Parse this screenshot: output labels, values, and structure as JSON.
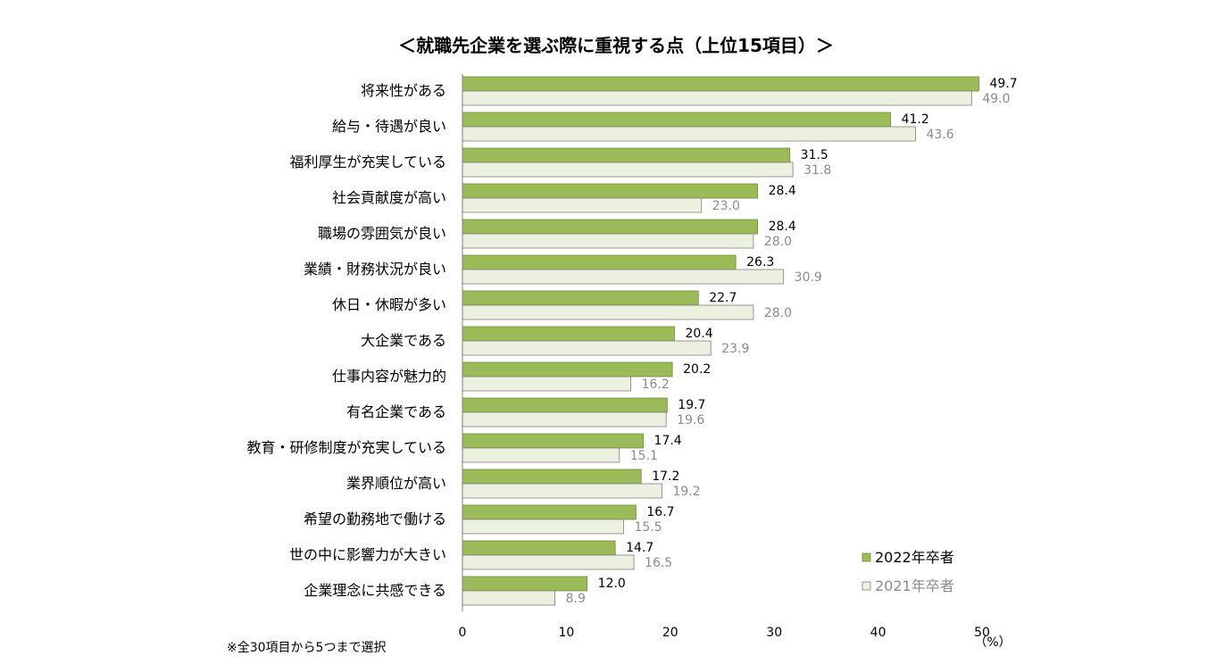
{
  "chart_data": {
    "type": "bar",
    "orientation": "horizontal",
    "title": "＜就職先企業を選ぶ際に重視する点（上位15項目）＞",
    "categories": [
      "将来性がある",
      "給与・待遇が良い",
      "福利厚生が充実している",
      "社会貢献度が高い",
      "職場の雰囲気が良い",
      "業績・財務状況が良い",
      "休日・休暇が多い",
      "大企業である",
      "仕事内容が魅力的",
      "有名企業である",
      "教育・研修制度が充実している",
      "業界順位が高い",
      "希望の勤務地で働ける",
      "世の中に影響力が大きい",
      "企業理念に共感できる"
    ],
    "series": [
      {
        "name": "2022年卒者",
        "color": "#9bbb59",
        "labels": [
          "49.7",
          "41.2",
          "31.5",
          "28.4",
          "28.4",
          "26.3",
          "22.7",
          "20.4",
          "20.2",
          "19.7",
          "17.4",
          "17.2",
          "16.7",
          "14.7",
          "12.0"
        ],
        "values": [
          49.7,
          41.2,
          31.5,
          28.4,
          28.4,
          26.3,
          22.7,
          20.4,
          20.2,
          19.7,
          17.4,
          17.2,
          16.7,
          14.7,
          12.0
        ]
      },
      {
        "name": "2021年卒者",
        "color": "#ebf1de",
        "labels": [
          "49.0",
          "43.6",
          "31.8",
          "23.0",
          "28.0",
          "30.9",
          "28.0",
          "23.9",
          "16.2",
          "19.6",
          "15.1",
          "19.2",
          "15.5",
          "16.5",
          "8.9"
        ],
        "values": [
          49.0,
          43.6,
          31.8,
          23.0,
          28.0,
          30.9,
          28.0,
          23.9,
          16.2,
          19.6,
          15.1,
          19.2,
          15.5,
          16.5,
          8.9
        ]
      }
    ],
    "xlim": [
      0,
      50
    ],
    "xticks": [
      "0",
      "10",
      "20",
      "30",
      "40",
      "50"
    ],
    "unit_label": "（%）",
    "legend_position": "bottom-right",
    "grid": false
  },
  "note": "※全30項目から5つまで選択"
}
